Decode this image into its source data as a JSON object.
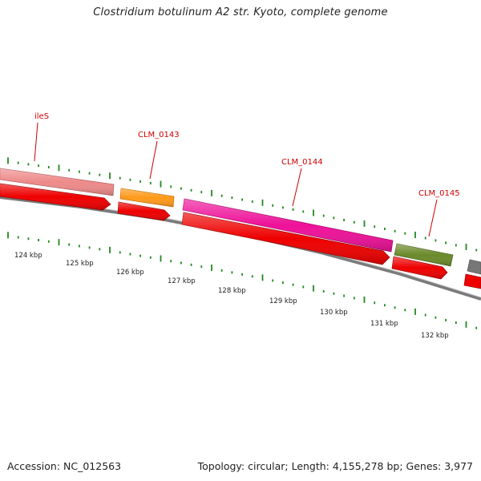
{
  "header": {
    "title": "Clostridium botulinum A2 str. Kyoto, complete genome"
  },
  "footer": {
    "accession": "Accession: NC_012563",
    "summary": "Topology: circular; Length: 4,155,278 bp; Genes: 3,977"
  },
  "colors": {
    "ileS": "#ee8a8a",
    "CLM_0143": "#ff9a1a",
    "CLM_0144": "#ee1199",
    "CLM_0145": "#6b8a2a",
    "unnamed": "#777777",
    "cds": "#ee0000",
    "label": "#cc0000",
    "tick": "#228822",
    "backbone": "#888888"
  },
  "genes": [
    {
      "name": "ileS",
      "color_key": "ileS"
    },
    {
      "name": "CLM_0143",
      "color_key": "CLM_0143"
    },
    {
      "name": "CLM_0144",
      "color_key": "CLM_0144"
    },
    {
      "name": "CLM_0145",
      "color_key": "CLM_0145"
    }
  ],
  "scale_labels": [
    "124 kbp",
    "125 kbp",
    "126 kbp",
    "127 kbp",
    "128 kbp",
    "129 kbp",
    "130 kbp",
    "131 kbp",
    "132 kbp"
  ]
}
